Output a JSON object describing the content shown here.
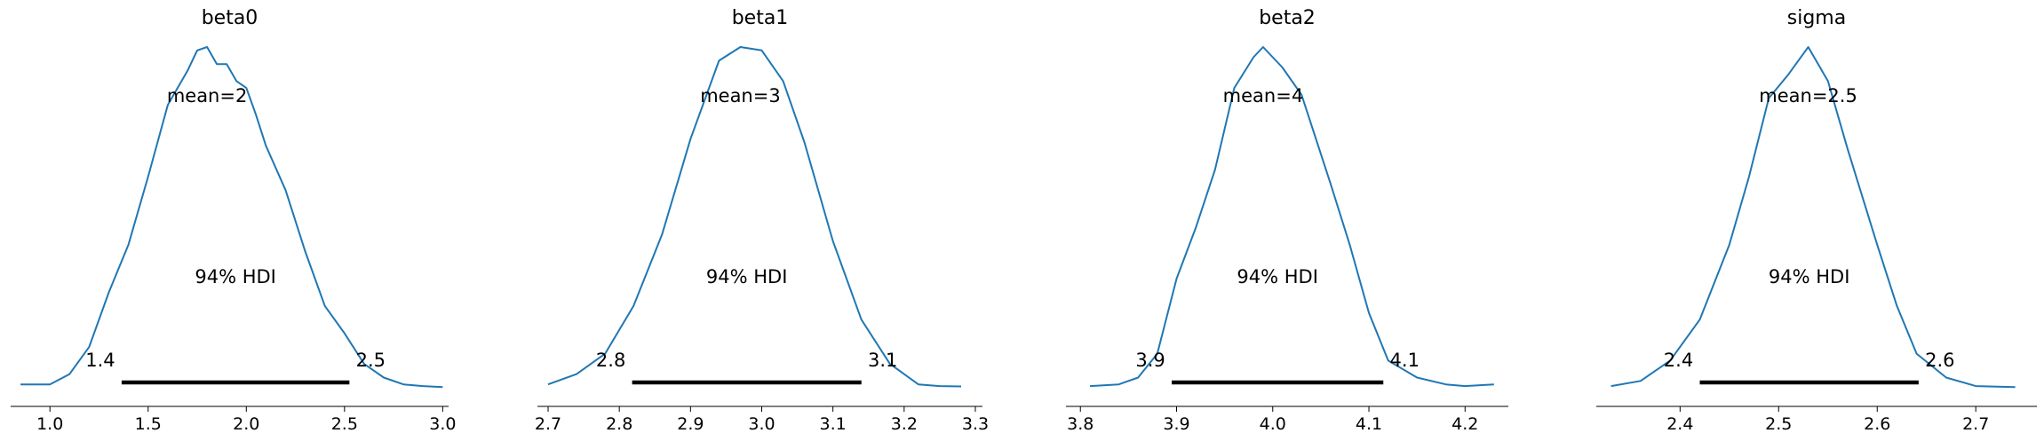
{
  "chart_data": [
    {
      "type": "area",
      "title": "beta0",
      "mean_label": "mean=2",
      "hdi_label": "94% HDI",
      "hdi_low_label": "1.4",
      "hdi_high_label": "2.5",
      "hdi": [
        1.365,
        2.525
      ],
      "xlim": [
        0.8,
        3.03
      ],
      "xticks": [
        1.0,
        1.5,
        2.0,
        2.5,
        3.0
      ],
      "xtick_labels": [
        "1.0",
        "1.5",
        "2.0",
        "2.5",
        "3.0"
      ],
      "density_x": [
        0.85,
        1.0,
        1.1,
        1.2,
        1.3,
        1.4,
        1.5,
        1.6,
        1.7,
        1.75,
        1.8,
        1.85,
        1.9,
        1.95,
        2.0,
        2.05,
        2.1,
        2.2,
        2.3,
        2.4,
        2.5,
        2.6,
        2.7,
        2.8,
        2.9,
        3.0
      ],
      "density_y": [
        0.01,
        0.01,
        0.04,
        0.12,
        0.28,
        0.42,
        0.62,
        0.83,
        0.93,
        0.99,
        1.0,
        0.95,
        0.95,
        0.9,
        0.88,
        0.8,
        0.71,
        0.58,
        0.4,
        0.24,
        0.16,
        0.07,
        0.03,
        0.01,
        0.005,
        0.002
      ]
    },
    {
      "type": "area",
      "title": "beta1",
      "mean_label": "mean=3",
      "hdi_label": "94% HDI",
      "hdi_low_label": "2.8",
      "hdi_high_label": "3.1",
      "hdi": [
        2.818,
        3.14
      ],
      "xlim": [
        2.685,
        3.31
      ],
      "xticks": [
        2.7,
        2.8,
        2.9,
        3.0,
        3.1,
        3.2,
        3.3
      ],
      "xtick_labels": [
        "2.7",
        "2.8",
        "2.9",
        "3.0",
        "3.1",
        "3.2",
        "3.3"
      ],
      "density_x": [
        2.7,
        2.74,
        2.78,
        2.82,
        2.86,
        2.9,
        2.94,
        2.97,
        3.0,
        3.03,
        3.06,
        3.1,
        3.14,
        3.18,
        3.22,
        3.25,
        3.28
      ],
      "density_y": [
        0.01,
        0.04,
        0.1,
        0.24,
        0.45,
        0.73,
        0.96,
        1.0,
        0.99,
        0.9,
        0.72,
        0.43,
        0.2,
        0.07,
        0.01,
        0.005,
        0.004
      ]
    },
    {
      "type": "area",
      "title": "beta2",
      "mean_label": "mean=4",
      "hdi_label": "94% HDI",
      "hdi_low_label": "3.9",
      "hdi_high_label": "4.1",
      "hdi": [
        3.895,
        4.115
      ],
      "xlim": [
        3.785,
        4.245
      ],
      "xticks": [
        3.8,
        3.9,
        4.0,
        4.1,
        4.2
      ],
      "xtick_labels": [
        "3.8",
        "3.9",
        "4.0",
        "4.1",
        "4.2"
      ],
      "density_x": [
        3.81,
        3.84,
        3.86,
        3.88,
        3.9,
        3.92,
        3.94,
        3.96,
        3.98,
        3.99,
        4.01,
        4.03,
        4.06,
        4.08,
        4.1,
        4.12,
        4.15,
        4.18,
        4.2,
        4.23
      ],
      "density_y": [
        0.005,
        0.01,
        0.03,
        0.1,
        0.32,
        0.47,
        0.64,
        0.88,
        0.97,
        1.0,
        0.94,
        0.86,
        0.6,
        0.42,
        0.22,
        0.08,
        0.03,
        0.01,
        0.005,
        0.01
      ]
    },
    {
      "type": "area",
      "title": "sigma",
      "mean_label": "mean=2.5",
      "hdi_label": "94% HDI",
      "hdi_low_label": "2.4",
      "hdi_high_label": "2.6",
      "hdi": [
        2.42,
        2.642
      ],
      "xlim": [
        2.315,
        2.762
      ],
      "xticks": [
        2.4,
        2.5,
        2.6,
        2.7
      ],
      "xtick_labels": [
        "2.4",
        "2.5",
        "2.6",
        "2.7"
      ],
      "density_x": [
        2.33,
        2.36,
        2.39,
        2.42,
        2.45,
        2.47,
        2.49,
        2.51,
        2.53,
        2.55,
        2.57,
        2.6,
        2.62,
        2.64,
        2.67,
        2.7,
        2.74
      ],
      "density_y": [
        0.005,
        0.02,
        0.08,
        0.2,
        0.42,
        0.62,
        0.85,
        0.92,
        1.0,
        0.9,
        0.7,
        0.42,
        0.24,
        0.1,
        0.03,
        0.005,
        0.002
      ]
    }
  ]
}
